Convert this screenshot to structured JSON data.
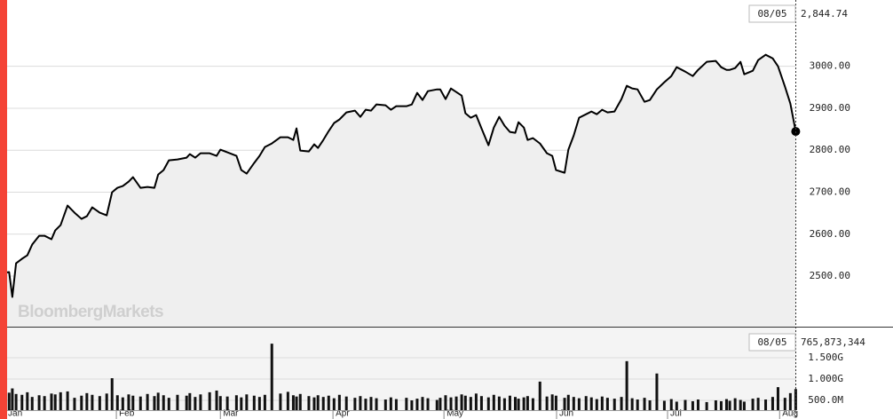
{
  "chart_data": [
    {
      "type": "line",
      "color": "#000000",
      "fill_color": "#efefef",
      "grid": true,
      "watermark": "BloombergMarkets",
      "readout": {
        "date": "08/05",
        "label": "2,844.74"
      },
      "xlim": [
        -0.5,
        148.0
      ],
      "ylim": [
        2379.5,
        3158
      ],
      "yticks": [
        {
          "value": 2500,
          "label": "2500.00"
        },
        {
          "value": 2600,
          "label": "2600.00"
        },
        {
          "value": 2700,
          "label": "2700.00"
        },
        {
          "value": 2800,
          "label": "2800.00"
        },
        {
          "value": 2900,
          "label": "2900.00"
        },
        {
          "value": 3000,
          "label": "3000.00"
        }
      ],
      "x": [
        0,
        1.2,
        1.8,
        2.5,
        3.6,
        4.6,
        5.5,
        6.8,
        7.8,
        9.1,
        9.8,
        10.8,
        12.1,
        13.4,
        14.7,
        15.7,
        16.7,
        18.1,
        19.4,
        20.4,
        21.4,
        22.4,
        23.5,
        24.3,
        25.7,
        27.0,
        28.3,
        29.0,
        30.0,
        31.0,
        32.6,
        34.3,
        34.9,
        35.9,
        36.9,
        38.6,
        39.9,
        40.6,
        41.9,
        43.6,
        44.5,
        45.5,
        46.9,
        47.9,
        48.9,
        50.2,
        51.8,
        53.2,
        54.2,
        54.8,
        55.5,
        57.1,
        58.1,
        58.8,
        59.8,
        60.8,
        61.8,
        62.8,
        64.1,
        65.7,
        66.7,
        67.7,
        68.7,
        69.7,
        71.4,
        72.4,
        73.4,
        75.3,
        76.3,
        77.3,
        78.3,
        79.3,
        81.0,
        81.6,
        82.6,
        83.6,
        84.6,
        85.6,
        86.3,
        87.3,
        88.3,
        89.3,
        90.6,
        91.6,
        92.6,
        93.6,
        94.6,
        95.6,
        96.2,
        97.2,
        97.9,
        98.9,
        100.2,
        101.5,
        102.5,
        103.2,
        104.8,
        105.5,
        106.5,
        107.5,
        108.8,
        109.8,
        110.8,
        111.8,
        112.8,
        114.1,
        115.4,
        116.4,
        117.4,
        118.4,
        119.7,
        120.7,
        122.0,
        123.4,
        124.7,
        125.7,
        127.3,
        128.7,
        129.7,
        131.3,
        133.0,
        134.0,
        135.0,
        135.6,
        136.6,
        137.6,
        138.3,
        139.9,
        140.9,
        142.3,
        143.6,
        144.6,
        145.9,
        146.9,
        147.9
      ],
      "values": [
        2507.4,
        2509.5,
        2450.4,
        2530.7,
        2541.3,
        2549.7,
        2575.1,
        2596.2,
        2596.2,
        2587.8,
        2608.9,
        2621.6,
        2668.1,
        2651.2,
        2636.4,
        2642.7,
        2663.9,
        2651.2,
        2644.8,
        2699.8,
        2710.4,
        2714.6,
        2725.2,
        2735.8,
        2710.4,
        2712.5,
        2710.4,
        2742.1,
        2752.7,
        2775.9,
        2778.0,
        2782.3,
        2790.7,
        2782.3,
        2792.8,
        2792.8,
        2786.5,
        2801.3,
        2795.1,
        2786.5,
        2752.7,
        2744.2,
        2769.6,
        2786.5,
        2807.6,
        2816.1,
        2830.9,
        2830.9,
        2824.5,
        2852.0,
        2799.2,
        2797.1,
        2814.0,
        2805.5,
        2824.5,
        2845.7,
        2864.7,
        2873.2,
        2890.1,
        2894.3,
        2879.5,
        2896.4,
        2894.3,
        2909.1,
        2907.0,
        2896.4,
        2904.9,
        2904.9,
        2909.1,
        2936.6,
        2919.7,
        2940.8,
        2945.0,
        2945.0,
        2921.8,
        2947.2,
        2938.7,
        2930.2,
        2888.0,
        2877.4,
        2883.7,
        2852.0,
        2811.9,
        2854.1,
        2879.5,
        2858.4,
        2843.6,
        2841.5,
        2866.8,
        2854.1,
        2824.5,
        2828.8,
        2816.1,
        2792.8,
        2786.5,
        2752.7,
        2746.3,
        2801.3,
        2835.1,
        2877.4,
        2885.8,
        2892.2,
        2885.8,
        2896.4,
        2890.1,
        2892.2,
        2921.8,
        2953.5,
        2947.2,
        2945.0,
        2915.4,
        2919.7,
        2945.0,
        2962.0,
        2976.7,
        2997.9,
        2987.3,
        2976.7,
        2991.5,
        3010.6,
        3012.7,
        2997.9,
        2991.5,
        2991.5,
        2995.8,
        3010.6,
        2981.0,
        2989.4,
        3014.8,
        3027.5,
        3019.0,
        3000.0,
        2951.4,
        2911.2,
        2844.74
      ]
    },
    {
      "type": "bar",
      "color": "#111111",
      "grid": true,
      "readout": {
        "date": "08/05",
        "label": "765,873,344"
      },
      "xlim": [
        -0.5,
        148.0
      ],
      "xticks": [
        {
          "value": 0.5,
          "label": "Jan"
        },
        {
          "value": 21.2,
          "label": "Feb"
        },
        {
          "value": 40.6,
          "label": "Mar"
        },
        {
          "value": 61.6,
          "label": "Apr"
        },
        {
          "value": 82.3,
          "label": "May"
        },
        {
          "value": 103.3,
          "label": "Jun"
        },
        {
          "value": 124.0,
          "label": "Jul"
        },
        {
          "value": 144.9,
          "label": "Aug"
        }
      ],
      "ylim": [
        271000000.0,
        2208000000.0
      ],
      "yticks": [
        {
          "value": 500000000.0,
          "label": "500.0M"
        },
        {
          "value": 1000000000.0,
          "label": "1.000G"
        },
        {
          "value": 1500000000.0,
          "label": "1.500G"
        }
      ],
      "x": [
        0,
        1.2,
        1.8,
        2.5,
        3.6,
        4.6,
        5.5,
        6.8,
        7.8,
        9.1,
        9.8,
        10.8,
        12.1,
        13.4,
        14.7,
        15.7,
        16.7,
        18.1,
        19.4,
        20.4,
        21.4,
        22.4,
        23.5,
        24.3,
        25.7,
        27.0,
        28.3,
        29.0,
        30.0,
        31.0,
        32.6,
        34.3,
        34.9,
        35.9,
        36.9,
        38.6,
        39.9,
        40.6,
        41.9,
        43.6,
        44.5,
        45.5,
        46.9,
        47.9,
        48.9,
        50.2,
        51.8,
        53.2,
        54.2,
        54.8,
        55.5,
        57.1,
        58.1,
        58.8,
        59.8,
        60.8,
        61.8,
        62.8,
        64.1,
        65.7,
        66.7,
        67.7,
        68.7,
        69.7,
        71.4,
        72.4,
        73.4,
        75.3,
        76.3,
        77.3,
        78.3,
        79.3,
        81.0,
        81.6,
        82.6,
        83.6,
        84.6,
        85.6,
        86.3,
        87.3,
        88.3,
        89.3,
        90.6,
        91.6,
        92.6,
        93.6,
        94.6,
        95.6,
        96.2,
        97.2,
        97.9,
        98.9,
        100.2,
        101.5,
        102.5,
        103.2,
        104.8,
        105.5,
        106.5,
        107.5,
        108.8,
        109.8,
        110.8,
        111.8,
        112.8,
        114.1,
        115.4,
        116.4,
        117.4,
        118.4,
        119.7,
        120.7,
        122.0,
        123.4,
        124.7,
        125.7,
        127.3,
        128.7,
        129.7,
        131.3,
        133.0,
        134.0,
        135.0,
        135.6,
        136.6,
        137.6,
        138.3,
        139.9,
        140.9,
        142.3,
        143.6,
        144.6,
        145.9,
        146.9,
        147.9
      ],
      "values": [
        720000000.0,
        680000000.0,
        780000000.0,
        650000000.0,
        630000000.0,
        690000000.0,
        580000000.0,
        620000000.0,
        600000000.0,
        660000000.0,
        640000000.0,
        690000000.0,
        710000000.0,
        560000000.0,
        610000000.0,
        670000000.0,
        630000000.0,
        600000000.0,
        660000000.0,
        1020000000.0,
        620000000.0,
        570000000.0,
        640000000.0,
        610000000.0,
        590000000.0,
        650000000.0,
        600000000.0,
        680000000.0,
        620000000.0,
        560000000.0,
        630000000.0,
        610000000.0,
        670000000.0,
        580000000.0,
        640000000.0,
        690000000.0,
        730000000.0,
        600000000.0,
        590000000.0,
        620000000.0,
        570000000.0,
        640000000.0,
        610000000.0,
        580000000.0,
        630000000.0,
        1830000000.0,
        660000000.0,
        700000000.0,
        620000000.0,
        590000000.0,
        650000000.0,
        600000000.0,
        570000000.0,
        620000000.0,
        580000000.0,
        610000000.0,
        550000000.0,
        630000000.0,
        590000000.0,
        560000000.0,
        600000000.0,
        540000000.0,
        580000000.0,
        550000000.0,
        520000000.0,
        570000000.0,
        530000000.0,
        560000000.0,
        500000000.0,
        540000000.0,
        580000000.0,
        550000000.0,
        510000000.0,
        560000000.0,
        620000000.0,
        570000000.0,
        590000000.0,
        640000000.0,
        610000000.0,
        580000000.0,
        660000000.0,
        600000000.0,
        570000000.0,
        630000000.0,
        590000000.0,
        550000000.0,
        610000000.0,
        580000000.0,
        540000000.0,
        570000000.0,
        600000000.0,
        550000000.0,
        940000000.0,
        590000000.0,
        640000000.0,
        610000000.0,
        560000000.0,
        630000000.0,
        580000000.0,
        550000000.0,
        600000000.0,
        570000000.0,
        530000000.0,
        590000000.0,
        560000000.0,
        540000000.0,
        580000000.0,
        1420000000.0,
        550000000.0,
        520000000.0,
        560000000.0,
        500000000.0,
        1130000000.0,
        490000000.0,
        530000000.0,
        470000000.0,
        510000000.0,
        480000000.0,
        520000000.0,
        460000000.0,
        500000000.0,
        480000000.0,
        530000000.0,
        490000000.0,
        550000000.0,
        510000000.0,
        470000000.0,
        540000000.0,
        560000000.0,
        520000000.0,
        580000000.0,
        810000000.0,
        560000000.0,
        670000000.0,
        765873344
      ]
    }
  ]
}
